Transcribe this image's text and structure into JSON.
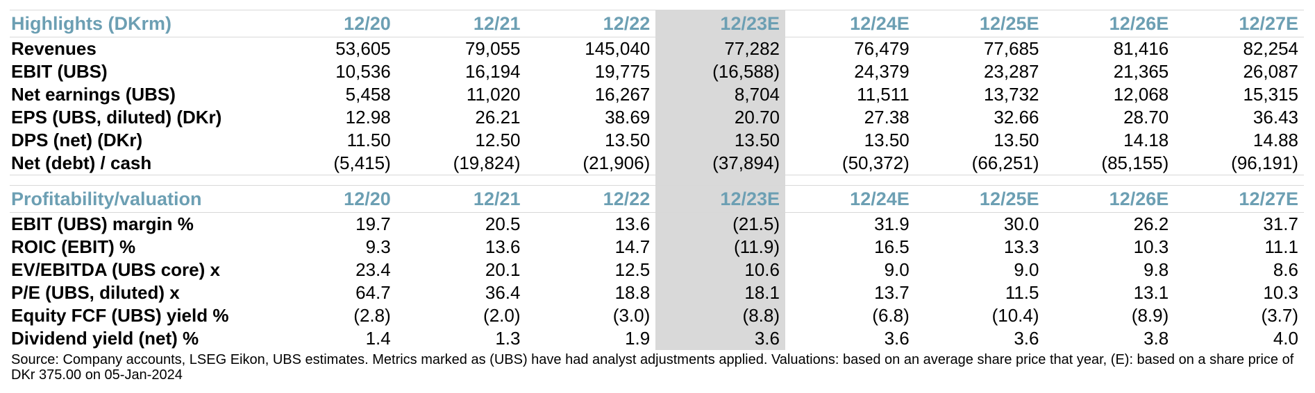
{
  "highlights": {
    "title": "Highlights (DKrm)",
    "columns": [
      "12/20",
      "12/21",
      "12/22",
      "12/23E",
      "12/24E",
      "12/25E",
      "12/26E",
      "12/27E"
    ],
    "rows": [
      {
        "label": "Revenues",
        "values": [
          "53,605",
          "79,055",
          "145,040",
          "77,282",
          "76,479",
          "77,685",
          "81,416",
          "82,254"
        ]
      },
      {
        "label": "EBIT (UBS)",
        "values": [
          "10,536",
          "16,194",
          "19,775",
          "(16,588)",
          "24,379",
          "23,287",
          "21,365",
          "26,087"
        ]
      },
      {
        "label": "Net earnings (UBS)",
        "values": [
          "5,458",
          "11,020",
          "16,267",
          "8,704",
          "11,511",
          "13,732",
          "12,068",
          "15,315"
        ]
      },
      {
        "label": "EPS (UBS, diluted) (DKr)",
        "values": [
          "12.98",
          "26.21",
          "38.69",
          "20.70",
          "27.38",
          "32.66",
          "28.70",
          "36.43"
        ]
      },
      {
        "label": "DPS (net) (DKr)",
        "values": [
          "11.50",
          "12.50",
          "13.50",
          "13.50",
          "13.50",
          "13.50",
          "14.18",
          "14.88"
        ]
      },
      {
        "label": "Net (debt) / cash",
        "values": [
          "(5,415)",
          "(19,824)",
          "(21,906)",
          "(37,894)",
          "(50,372)",
          "(66,251)",
          "(85,155)",
          "(96,191)"
        ]
      }
    ]
  },
  "profitability": {
    "title": "Profitability/valuation",
    "columns": [
      "12/20",
      "12/21",
      "12/22",
      "12/23E",
      "12/24E",
      "12/25E",
      "12/26E",
      "12/27E"
    ],
    "rows": [
      {
        "label": "EBIT (UBS) margin %",
        "values": [
          "19.7",
          "20.5",
          "13.6",
          "(21.5)",
          "31.9",
          "30.0",
          "26.2",
          "31.7"
        ]
      },
      {
        "label": "ROIC (EBIT) %",
        "values": [
          "9.3",
          "13.6",
          "14.7",
          "(11.9)",
          "16.5",
          "13.3",
          "10.3",
          "11.1"
        ]
      },
      {
        "label": "EV/EBITDA (UBS core) x",
        "values": [
          "23.4",
          "20.1",
          "12.5",
          "10.6",
          "9.0",
          "9.0",
          "9.8",
          "8.6"
        ]
      },
      {
        "label": "P/E (UBS, diluted) x",
        "values": [
          "64.7",
          "36.4",
          "18.8",
          "18.1",
          "13.7",
          "11.5",
          "13.1",
          "10.3"
        ]
      },
      {
        "label": "Equity FCF (UBS) yield %",
        "values": [
          "(2.8)",
          "(2.0)",
          "(3.0)",
          "(8.8)",
          "(6.8)",
          "(10.4)",
          "(8.9)",
          "(3.7)"
        ]
      },
      {
        "label": "Dividend yield (net) %",
        "values": [
          "1.4",
          "1.3",
          "1.9",
          "3.6",
          "3.6",
          "3.6",
          "3.8",
          "4.0"
        ]
      }
    ]
  },
  "colors": {
    "header_text": "#6c9fb3",
    "highlight_column_bg": "#d9d9d9"
  },
  "source_note": "Source: Company accounts, LSEG Eikon, UBS estimates. Metrics marked as (UBS) have had analyst adjustments applied. Valuations: based on an average share price that year, (E): based on a share price of DKr 375.00 on 05-Jan-2024"
}
